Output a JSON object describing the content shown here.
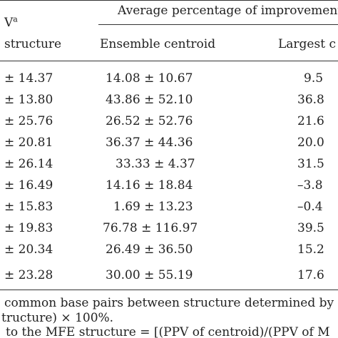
{
  "header": {
    "col1_top": "V",
    "col1_top_sup": "a",
    "col1_bottom": "structure",
    "group_title": "Average percentage of improvement",
    "col2": "Ensemble centroid",
    "col3": "Largest c"
  },
  "rows": [
    {
      "c1": "± 14.37",
      "c2": "14.08 ± 10.67",
      "c3": "9.5"
    },
    {
      "c1": "± 13.80",
      "c2": "43.86 ± 52.10",
      "c3": "36.8"
    },
    {
      "c1": "± 25.76",
      "c2": "26.52 ± 52.76",
      "c3": "21.6"
    },
    {
      "c1": "± 20.81",
      "c2": "36.37 ± 44.36",
      "c3": "20.0"
    },
    {
      "c1": "± 26.14",
      "c2": "33.33 ± 4.37",
      "c3": "31.5"
    },
    {
      "c1": "± 16.49",
      "c2": "14.16 ± 18.84",
      "c3": "–3.8"
    },
    {
      "c1": "± 15.83",
      "c2": "1.69 ± 13.23",
      "c3": "–0.4"
    },
    {
      "c1": "± 19.83",
      "c2": "76.78 ± 116.97",
      "c3": "39.5"
    },
    {
      "c1": "± 20.34",
      "c2": "26.49 ± 36.50",
      "c3": "15.2"
    },
    {
      "c1": "± 23.28",
      "c2": "30.00 ± 55.19",
      "c3": "17.6"
    }
  ],
  "footnotes": [
    "common base pairs between structure determined by",
    "tructure) × 100%.",
    "to the MFE structure = [(PPV of centroid)/(PPV of M"
  ]
}
